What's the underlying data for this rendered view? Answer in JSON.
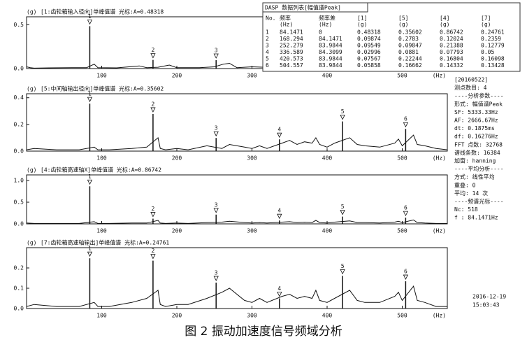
{
  "chart_data": [
    {
      "type": "line",
      "ylabel": "(g)",
      "title": "[1:齿轮箱输入径向]单峰值谱 光标:A=0.48318",
      "xlabel": "(Hz)",
      "xlim": [
        0,
        560
      ],
      "xticks": [
        100,
        200,
        300,
        400,
        500
      ],
      "ylim": [
        0,
        0.59
      ],
      "yticks": [
        {
          "value": 0,
          "label": "0.0"
        },
        0.5
      ],
      "color": "#111111",
      "x": [
        0,
        5,
        10,
        30,
        60,
        80,
        90,
        95,
        120,
        150,
        160,
        175,
        190,
        200,
        230,
        250,
        262,
        270,
        280,
        300,
        330,
        350,
        380,
        400,
        430,
        460,
        490,
        510,
        540,
        560
      ],
      "values": [
        0.02,
        0.01,
        0.005,
        0.008,
        0.01,
        0.01,
        0.05,
        0.01,
        0.008,
        0.03,
        0.01,
        0.015,
        0.04,
        0.01,
        0.01,
        0.02,
        0.05,
        0.06,
        0.01,
        0.02,
        0.01,
        0.01,
        0.02,
        0.01,
        0.008,
        0.02,
        0.01,
        0.01,
        0.005,
        0.005
      ],
      "peaks": {
        "x": [
          84.1471,
          168.294,
          252.279
        ],
        "values": [
          0.48318,
          0.09874,
          0.09549
        ],
        "labels": [
          "1",
          "2",
          "3"
        ]
      }
    },
    {
      "type": "line",
      "ylabel": "(g)",
      "title": "[5:中间轴输出径向]单峰值谱 光标:A=0.35602",
      "xlabel": "(Hz)",
      "xlim": [
        0,
        560
      ],
      "xticks": [
        100,
        200,
        300,
        400,
        500
      ],
      "ylim": [
        0,
        0.43
      ],
      "yticks": [
        {
          "value": 0,
          "label": "0.0"
        },
        0.2,
        0.4
      ],
      "color": "#111111",
      "x": [
        0,
        10,
        40,
        70,
        90,
        95,
        110,
        140,
        160,
        175,
        178,
        185,
        200,
        215,
        240,
        260,
        270,
        290,
        300,
        310,
        320,
        340,
        350,
        360,
        370,
        380,
        385,
        390,
        400,
        410,
        430,
        440,
        450,
        470,
        490,
        495,
        500,
        515,
        520,
        530,
        545,
        560
      ],
      "values": [
        0.01,
        0.02,
        0.01,
        0.01,
        0.03,
        0.01,
        0.01,
        0.02,
        0.03,
        0.1,
        0.02,
        0.01,
        0.02,
        0.01,
        0.04,
        0.02,
        0.05,
        0.03,
        0.02,
        0.04,
        0.02,
        0.06,
        0.08,
        0.05,
        0.07,
        0.06,
        0.1,
        0.05,
        0.03,
        0.06,
        0.1,
        0.05,
        0.04,
        0.03,
        0.06,
        0.09,
        0.04,
        0.12,
        0.05,
        0.04,
        0.02,
        0.01
      ],
      "peaks": {
        "x": [
          84.1471,
          168.294,
          252.279,
          336.589,
          420.573,
          504.557
        ],
        "values": [
          0.35602,
          0.2783,
          0.09847,
          0.0881,
          0.22244,
          0.16662
        ],
        "labels": [
          "1",
          "2",
          "3",
          "4",
          "5",
          "6"
        ]
      }
    },
    {
      "type": "line",
      "ylabel": "(g)",
      "title": "[4:齿轮箱高速轴X]单峰值谱 光标:A=0.86742",
      "xlabel": "(Hz)",
      "xlim": [
        0,
        560
      ],
      "xticks": [
        100,
        200,
        300,
        400,
        500
      ],
      "ylim": [
        0,
        1.13
      ],
      "yticks": [
        {
          "value": 0,
          "label": "0.0"
        },
        0.5,
        {
          "value": 1,
          "label": "1.0"
        }
      ],
      "color": "#111111",
      "x": [
        0,
        10,
        40,
        70,
        90,
        95,
        110,
        140,
        160,
        175,
        178,
        185,
        200,
        215,
        240,
        260,
        270,
        290,
        300,
        310,
        320,
        340,
        350,
        360,
        370,
        380,
        385,
        390,
        400,
        410,
        430,
        440,
        450,
        470,
        490,
        495,
        500,
        515,
        520,
        530,
        545,
        560
      ],
      "values": [
        0.02,
        0.01,
        0.01,
        0.01,
        0.05,
        0.01,
        0.01,
        0.02,
        0.02,
        0.08,
        0.02,
        0.01,
        0.02,
        0.01,
        0.03,
        0.04,
        0.06,
        0.03,
        0.02,
        0.03,
        0.02,
        0.04,
        0.05,
        0.03,
        0.04,
        0.03,
        0.08,
        0.03,
        0.02,
        0.04,
        0.07,
        0.03,
        0.03,
        0.02,
        0.04,
        0.06,
        0.03,
        0.09,
        0.03,
        0.02,
        0.01,
        0.01
      ],
      "peaks": {
        "x": [
          84.1471,
          168.294,
          252.279,
          336.589,
          420.573,
          504.557
        ],
        "values": [
          0.86742,
          0.12024,
          0.21388,
          0.07793,
          0.16804,
          0.14332
        ],
        "labels": [
          "1",
          "2",
          "3",
          "4",
          "5",
          "6"
        ]
      }
    },
    {
      "type": "line",
      "ylabel": "(g)",
      "title": "[7:齿轮箱高速轴输出]单峰值谱 光标:A=0.24761",
      "xlabel": "(Hz)",
      "xlim": [
        0,
        560
      ],
      "xticks": [
        100,
        200,
        300,
        400,
        500
      ],
      "ylim": [
        0,
        0.3
      ],
      "yticks": [
        {
          "value": 0,
          "label": "0.0"
        },
        0.1,
        0.2
      ],
      "color": "#111111",
      "x": [
        0,
        10,
        40,
        70,
        90,
        95,
        110,
        140,
        160,
        175,
        178,
        185,
        200,
        215,
        240,
        260,
        270,
        290,
        300,
        310,
        320,
        340,
        350,
        360,
        370,
        380,
        385,
        390,
        400,
        410,
        430,
        440,
        450,
        470,
        490,
        495,
        500,
        515,
        520,
        530,
        545,
        560
      ],
      "values": [
        0.01,
        0.02,
        0.01,
        0.01,
        0.03,
        0.01,
        0.01,
        0.03,
        0.05,
        0.09,
        0.02,
        0.01,
        0.02,
        0.02,
        0.05,
        0.08,
        0.1,
        0.04,
        0.03,
        0.05,
        0.03,
        0.06,
        0.07,
        0.05,
        0.06,
        0.05,
        0.09,
        0.04,
        0.03,
        0.05,
        0.09,
        0.04,
        0.03,
        0.03,
        0.06,
        0.08,
        0.04,
        0.11,
        0.04,
        0.03,
        0.01,
        0.01
      ],
      "peaks": {
        "x": [
          84.1471,
          168.294,
          252.279,
          336.589,
          420.573,
          504.557
        ],
        "values": [
          0.24761,
          0.2359,
          0.12779,
          0.05,
          0.16098,
          0.13428
        ],
        "labels": [
          "1",
          "2",
          "3",
          "4",
          "5",
          "6"
        ]
      }
    }
  ],
  "table": {
    "title": "DASP 数据列表[幅值谱Peak]",
    "header": [
      "No.",
      "频率",
      "频率差",
      "[1]",
      "[5]",
      "[4]",
      "[7]"
    ],
    "units": [
      "(Hz)",
      "(Hz)",
      "(g)",
      "(g)",
      "(g)",
      "(g)"
    ],
    "rows": [
      [
        1,
        84.1471,
        0,
        0.48318,
        0.35602,
        0.86742,
        0.24761
      ],
      [
        2,
        168.294,
        84.1471,
        0.09874,
        0.2783,
        0.12024,
        0.2359
      ],
      [
        3,
        252.279,
        83.9844,
        0.09549,
        0.09847,
        0.21388,
        0.12779
      ],
      [
        4,
        336.589,
        84.3099,
        0.02996,
        0.0881,
        0.07793,
        0.05
      ],
      [
        5,
        420.573,
        83.9844,
        0.07567,
        0.22244,
        0.16804,
        0.16098
      ],
      [
        6,
        504.557,
        83.9844,
        0.05858,
        0.16662,
        0.14332,
        0.13428
      ]
    ]
  },
  "panel": [
    "[20160522]",
    "测点数目: 4",
    "----分析参数----",
    "形式: 幅值谱Peak",
    "SF: 5333.33Hz",
    "AF: 2666.67Hz",
    "dt: 0.1875ms",
    "df: 0.16276Hz",
    "FFT 点数: 32768",
    "谱线条数: 16384",
    "加窗: hanning",
    "----平均分析----",
    "方式: 线性平均",
    "重叠: 0",
    "平均: 14 次",
    "----频谱光标----",
    "Nc: 518",
    "f : 84.1471Hz"
  ],
  "timestamp": [
    "2016-12-19",
    "15:03:43"
  ],
  "caption": "图 2  振动加速度信号频域分析"
}
